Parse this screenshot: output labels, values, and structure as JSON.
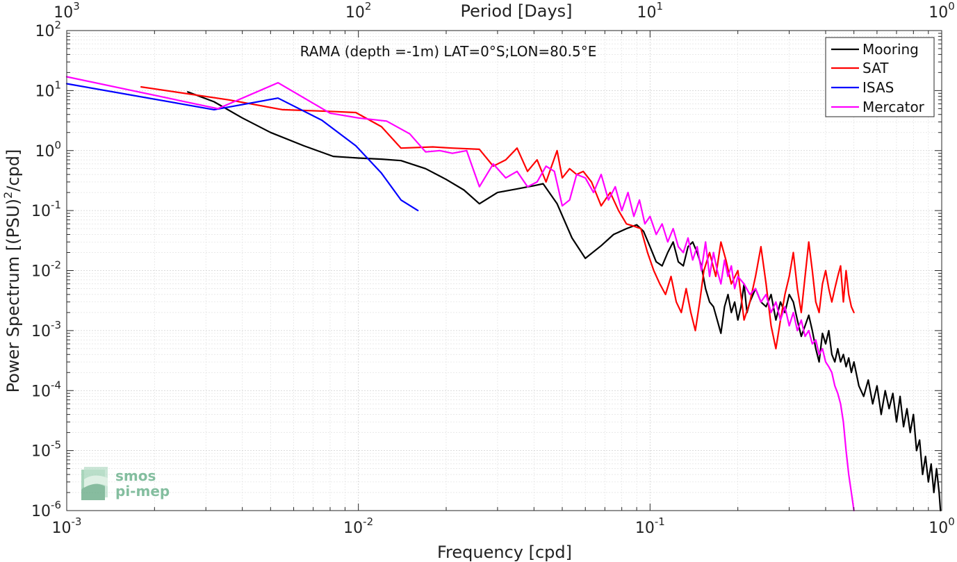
{
  "chart_data": {
    "type": "line",
    "title": "RAMA (depth =-1m) LAT=0°S;LON=80.5°E",
    "xlabel": "Frequency [cpd]",
    "ylabel": "Power Spectrum [(PSU)²/cpd]",
    "ylabel_base": "Power Spectrum [(PSU)",
    "ylabel_sup": "2",
    "ylabel_end": "/cpd]",
    "top_axis_label": "Period [Days]",
    "xscale": "log",
    "yscale": "log",
    "xlim": [
      0.001,
      1
    ],
    "ylim": [
      1e-06,
      100
    ],
    "grid": true,
    "legend_position": "top-right",
    "x_ticks": [
      {
        "base": "10",
        "exp": "-3"
      },
      {
        "base": "10",
        "exp": "-2"
      },
      {
        "base": "10",
        "exp": "-1"
      },
      {
        "base": "10",
        "exp": "0"
      }
    ],
    "top_ticks": [
      {
        "base": "10",
        "exp": "3"
      },
      {
        "base": "10",
        "exp": "2"
      },
      {
        "base": "10",
        "exp": "1"
      },
      {
        "base": "10",
        "exp": "0"
      }
    ],
    "y_ticks": [
      {
        "base": "10",
        "exp": "2"
      },
      {
        "base": "10",
        "exp": "1"
      },
      {
        "base": "10",
        "exp": "0"
      },
      {
        "base": "10",
        "exp": "-1"
      },
      {
        "base": "10",
        "exp": "-2"
      },
      {
        "base": "10",
        "exp": "-3"
      },
      {
        "base": "10",
        "exp": "-4"
      },
      {
        "base": "10",
        "exp": "-5"
      },
      {
        "base": "10",
        "exp": "-6"
      }
    ],
    "series": [
      {
        "name": "Mooring",
        "color": "#000000",
        "x": [
          0.0026,
          0.0032,
          0.004,
          0.005,
          0.0065,
          0.0082,
          0.01,
          0.012,
          0.014,
          0.017,
          0.02,
          0.023,
          0.026,
          0.03,
          0.035,
          0.04,
          0.043,
          0.048,
          0.054,
          0.06,
          0.068,
          0.075,
          0.083,
          0.09,
          0.095,
          0.1,
          0.105,
          0.11,
          0.115,
          0.12,
          0.125,
          0.13,
          0.135,
          0.14,
          0.145,
          0.15,
          0.155,
          0.16,
          0.165,
          0.17,
          0.175,
          0.18,
          0.185,
          0.19,
          0.195,
          0.2,
          0.205,
          0.21,
          0.215,
          0.22,
          0.23,
          0.24,
          0.25,
          0.26,
          0.27,
          0.28,
          0.29,
          0.3,
          0.31,
          0.32,
          0.33,
          0.34,
          0.35,
          0.36,
          0.37,
          0.38,
          0.39,
          0.4,
          0.41,
          0.42,
          0.43,
          0.44,
          0.45,
          0.46,
          0.47,
          0.48,
          0.49,
          0.5,
          0.52,
          0.54,
          0.56,
          0.58,
          0.6,
          0.62,
          0.64,
          0.66,
          0.68,
          0.7,
          0.72,
          0.74,
          0.76,
          0.78,
          0.8,
          0.82,
          0.84,
          0.86,
          0.88,
          0.9,
          0.92,
          0.94,
          0.96,
          0.98,
          0.99
        ],
        "y": [
          9.5,
          6.5,
          3.5,
          2.0,
          1.2,
          0.8,
          0.75,
          0.72,
          0.68,
          0.5,
          0.33,
          0.22,
          0.13,
          0.2,
          0.23,
          0.26,
          0.28,
          0.13,
          0.035,
          0.016,
          0.026,
          0.04,
          0.05,
          0.058,
          0.045,
          0.025,
          0.014,
          0.012,
          0.02,
          0.03,
          0.014,
          0.012,
          0.025,
          0.03,
          0.02,
          0.012,
          0.005,
          0.003,
          0.0025,
          0.0015,
          0.0009,
          0.0025,
          0.004,
          0.002,
          0.003,
          0.0015,
          0.0025,
          0.006,
          0.002,
          0.003,
          0.005,
          0.003,
          0.0025,
          0.004,
          0.0015,
          0.003,
          0.002,
          0.004,
          0.003,
          0.0015,
          0.0008,
          0.0012,
          0.0018,
          0.001,
          0.0005,
          0.0003,
          0.0009,
          0.0006,
          0.001,
          0.0004,
          0.0003,
          0.0005,
          0.0003,
          0.0004,
          0.00025,
          0.00035,
          0.0002,
          0.0003,
          0.00012,
          8e-05,
          0.00015,
          6e-05,
          0.00012,
          4e-05,
          0.0001,
          5e-05,
          9e-05,
          3e-05,
          8e-05,
          2.5e-05,
          5e-05,
          2e-05,
          4e-05,
          1e-05,
          1.5e-05,
          4e-06,
          8e-06,
          3e-06,
          6e-06,
          2e-06,
          5e-06,
          2e-06,
          1e-06
        ]
      },
      {
        "name": "SAT",
        "color": "#ff0000",
        "x": [
          0.0018,
          0.0036,
          0.0055,
          0.008,
          0.0098,
          0.012,
          0.014,
          0.018,
          0.021,
          0.026,
          0.029,
          0.032,
          0.035,
          0.038,
          0.041,
          0.044,
          0.048,
          0.05,
          0.053,
          0.056,
          0.059,
          0.063,
          0.068,
          0.073,
          0.078,
          0.083,
          0.088,
          0.093,
          0.098,
          0.103,
          0.108,
          0.113,
          0.118,
          0.123,
          0.128,
          0.133,
          0.138,
          0.143,
          0.148,
          0.153,
          0.16,
          0.168,
          0.175,
          0.182,
          0.19,
          0.2,
          0.21,
          0.22,
          0.23,
          0.24,
          0.25,
          0.26,
          0.27,
          0.28,
          0.29,
          0.3,
          0.31,
          0.32,
          0.33,
          0.34,
          0.35,
          0.36,
          0.37,
          0.38,
          0.39,
          0.4,
          0.41,
          0.42,
          0.43,
          0.44,
          0.45,
          0.46,
          0.47,
          0.48,
          0.49,
          0.5
        ],
        "y": [
          11.5,
          7.0,
          4.8,
          4.5,
          4.3,
          2.5,
          1.1,
          1.15,
          1.1,
          1.05,
          0.55,
          0.7,
          1.1,
          0.45,
          0.7,
          0.3,
          1.0,
          0.35,
          0.5,
          0.4,
          0.45,
          0.3,
          0.12,
          0.2,
          0.1,
          0.06,
          0.055,
          0.05,
          0.02,
          0.01,
          0.006,
          0.004,
          0.008,
          0.003,
          0.002,
          0.005,
          0.002,
          0.001,
          0.003,
          0.01,
          0.02,
          0.008,
          0.03,
          0.015,
          0.006,
          0.01,
          0.0015,
          0.003,
          0.008,
          0.025,
          0.006,
          0.0012,
          0.0005,
          0.0015,
          0.004,
          0.008,
          0.02,
          0.005,
          0.002,
          0.008,
          0.03,
          0.01,
          0.003,
          0.002,
          0.006,
          0.01,
          0.005,
          0.003,
          0.005,
          0.008,
          0.012,
          0.003,
          0.01,
          0.004,
          0.0025,
          0.002
        ]
      },
      {
        "name": "ISAS",
        "color": "#0000ff",
        "x": [
          0.001,
          0.0032,
          0.0053,
          0.0075,
          0.0098,
          0.012,
          0.014,
          0.016
        ],
        "y": [
          13.0,
          4.8,
          7.5,
          3.2,
          1.2,
          0.42,
          0.15,
          0.1
        ]
      },
      {
        "name": "Mercator",
        "color": "#ff00ff",
        "x": [
          0.001,
          0.0033,
          0.0053,
          0.008,
          0.01,
          0.0125,
          0.015,
          0.017,
          0.019,
          0.021,
          0.0235,
          0.026,
          0.029,
          0.032,
          0.035,
          0.038,
          0.041,
          0.044,
          0.047,
          0.05,
          0.053,
          0.056,
          0.06,
          0.064,
          0.068,
          0.072,
          0.076,
          0.08,
          0.084,
          0.088,
          0.092,
          0.096,
          0.1,
          0.105,
          0.11,
          0.115,
          0.12,
          0.125,
          0.13,
          0.135,
          0.14,
          0.145,
          0.15,
          0.155,
          0.16,
          0.165,
          0.17,
          0.175,
          0.18,
          0.185,
          0.19,
          0.195,
          0.2,
          0.21,
          0.22,
          0.23,
          0.24,
          0.25,
          0.26,
          0.27,
          0.28,
          0.29,
          0.3,
          0.31,
          0.32,
          0.33,
          0.34,
          0.35,
          0.36,
          0.37,
          0.38,
          0.39,
          0.4,
          0.41,
          0.42,
          0.43,
          0.44,
          0.45,
          0.46,
          0.47,
          0.48,
          0.49,
          0.5
        ],
        "y": [
          17.0,
          5.0,
          13.5,
          4.2,
          3.5,
          3.1,
          1.9,
          0.95,
          1.0,
          0.9,
          1.0,
          0.25,
          0.6,
          0.35,
          0.45,
          0.25,
          0.3,
          0.55,
          0.45,
          0.12,
          0.15,
          0.4,
          0.35,
          0.2,
          0.4,
          0.15,
          0.25,
          0.1,
          0.2,
          0.08,
          0.15,
          0.06,
          0.08,
          0.04,
          0.06,
          0.03,
          0.05,
          0.025,
          0.02,
          0.035,
          0.015,
          0.025,
          0.01,
          0.03,
          0.008,
          0.02,
          0.01,
          0.006,
          0.015,
          0.008,
          0.012,
          0.005,
          0.008,
          0.006,
          0.004,
          0.005,
          0.003,
          0.004,
          0.002,
          0.003,
          0.0015,
          0.0025,
          0.0012,
          0.002,
          0.001,
          0.0015,
          0.0008,
          0.001,
          0.0006,
          0.0007,
          0.0004,
          0.0005,
          0.0003,
          0.00025,
          0.0002,
          0.00012,
          9e-05,
          6e-05,
          3e-05,
          1e-05,
          4e-06,
          2e-06,
          1e-06
        ]
      }
    ]
  },
  "logo": {
    "line1": "smos",
    "line2": "pi-mep"
  }
}
